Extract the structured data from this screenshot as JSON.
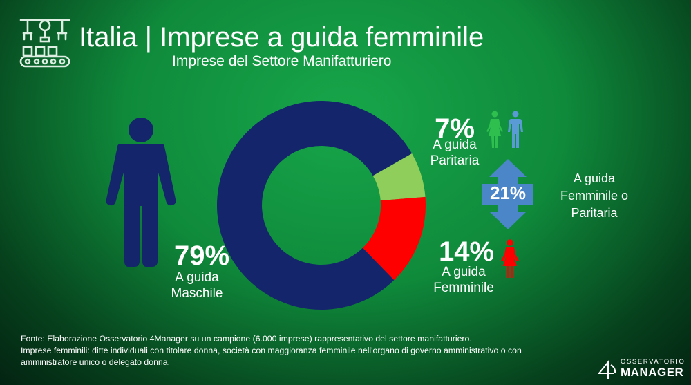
{
  "header": {
    "title": "Italia | Imprese a guida femminile",
    "subtitle": "Imprese del Settore Manifatturiero"
  },
  "chart_data": {
    "type": "pie",
    "donut": true,
    "slices": [
      {
        "percent_label": "79%",
        "label": "A guida\nMaschile",
        "value": 79,
        "color": "#14256b"
      },
      {
        "percent_label": "7%",
        "label": "A guida\nParitaria",
        "value": 7,
        "color": "#8fce5a"
      },
      {
        "percent_label": "14%",
        "label": "A guida\nFemminile",
        "value": 14,
        "color": "#ff0000"
      }
    ],
    "combined": {
      "value_label": "21%",
      "label": "A guida\nFemminile o\nParitaria",
      "color": "#4a86c8"
    }
  },
  "icons": {
    "logo": "factory-robot-arms-icon",
    "man": "man-icon",
    "couple": "woman-and-man-icon",
    "woman": "woman-icon",
    "arrow": "double-arrow-vertical-icon"
  },
  "colors": {
    "icon_green": "#2fbf4f",
    "icon_blue": "#5b9bd5",
    "icon_red": "#ff0000",
    "man_blue": "#14256b"
  },
  "footnote": {
    "line1": "Fonte:  Elaborazione Osservatorio 4Manager su un campione (6.000 imprese) rappresentativo del settore manifatturiero.",
    "line2": "Imprese femminili: ditte individuali con titolare donna, società con maggioranza femminile nell'organo di governo amministrativo o con",
    "line3": "amministratore unico o delegato donna."
  },
  "brand": {
    "top": "OSSERVATORIO",
    "bottom": "MANAGER"
  }
}
